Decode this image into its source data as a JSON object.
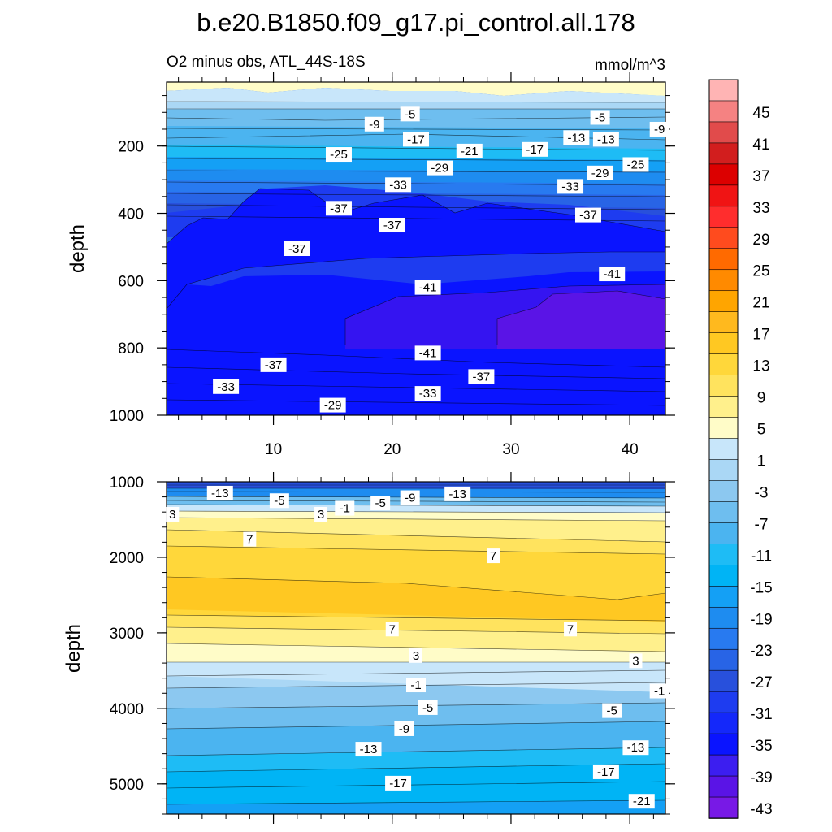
{
  "chart_data": [
    {
      "type": "contour",
      "title": "b.e20.B1850.f09_g17.pi_control.all.178",
      "left_label": "O2 minus obs, ATL_44S-18S",
      "units": "mmol/m^3",
      "xlabel": "",
      "ylabel": "depth",
      "xlim": [
        1,
        43
      ],
      "ylim": [
        1000,
        10
      ],
      "x_ticks": [
        10,
        20,
        30,
        40
      ],
      "y_ticks": [
        200,
        400,
        600,
        800,
        1000
      ],
      "contour_labels": [
        {
          "x": 21.5,
          "y": 105,
          "value": "-5"
        },
        {
          "x": 18.5,
          "y": 135,
          "value": "-9"
        },
        {
          "x": 37.5,
          "y": 115,
          "value": "-5"
        },
        {
          "x": 42.5,
          "y": 150,
          "value": "-9"
        },
        {
          "x": 22.0,
          "y": 180,
          "value": "-17"
        },
        {
          "x": 35.5,
          "y": 175,
          "value": "-13"
        },
        {
          "x": 38.0,
          "y": 180,
          "value": "-13"
        },
        {
          "x": 15.5,
          "y": 225,
          "value": "-25"
        },
        {
          "x": 26.5,
          "y": 215,
          "value": "-21"
        },
        {
          "x": 32.0,
          "y": 210,
          "value": "-17"
        },
        {
          "x": 24.0,
          "y": 265,
          "value": "-29"
        },
        {
          "x": 40.5,
          "y": 255,
          "value": "-25"
        },
        {
          "x": 20.5,
          "y": 315,
          "value": "-33"
        },
        {
          "x": 37.5,
          "y": 280,
          "value": "-29"
        },
        {
          "x": 35.0,
          "y": 320,
          "value": "-33"
        },
        {
          "x": 15.5,
          "y": 385,
          "value": "-37"
        },
        {
          "x": 20.0,
          "y": 435,
          "value": "-37"
        },
        {
          "x": 36.5,
          "y": 405,
          "value": "-37"
        },
        {
          "x": 12.0,
          "y": 505,
          "value": "-37"
        },
        {
          "x": 38.5,
          "y": 580,
          "value": "-41"
        },
        {
          "x": 23.0,
          "y": 620,
          "value": "-41"
        },
        {
          "x": 23.0,
          "y": 815,
          "value": "-41"
        },
        {
          "x": 10.0,
          "y": 850,
          "value": "-37"
        },
        {
          "x": 27.5,
          "y": 885,
          "value": "-37"
        },
        {
          "x": 6.0,
          "y": 915,
          "value": "-33"
        },
        {
          "x": 23.0,
          "y": 935,
          "value": "-33"
        },
        {
          "x": 15.0,
          "y": 970,
          "value": "-29"
        }
      ]
    },
    {
      "type": "contour",
      "xlabel": "",
      "ylabel": "depth",
      "xlim": [
        1,
        43
      ],
      "ylim": [
        5400,
        1000
      ],
      "x_ticks": [
        10,
        20,
        30,
        40
      ],
      "y_ticks": [
        1000,
        2000,
        3000,
        4000,
        5000
      ],
      "contour_labels": [
        {
          "x": 5.5,
          "y": 1150,
          "value": "-13"
        },
        {
          "x": 10.5,
          "y": 1250,
          "value": "-5"
        },
        {
          "x": 1.5,
          "y": 1430,
          "value": "3"
        },
        {
          "x": 14.0,
          "y": 1430,
          "value": "3"
        },
        {
          "x": 16.0,
          "y": 1350,
          "value": "-1"
        },
        {
          "x": 19.0,
          "y": 1280,
          "value": "-5"
        },
        {
          "x": 21.5,
          "y": 1210,
          "value": "-9"
        },
        {
          "x": 25.5,
          "y": 1160,
          "value": "-13"
        },
        {
          "x": 8.0,
          "y": 1760,
          "value": "7"
        },
        {
          "x": 28.5,
          "y": 1980,
          "value": "7"
        },
        {
          "x": 20.0,
          "y": 2950,
          "value": "7"
        },
        {
          "x": 35.0,
          "y": 2950,
          "value": "7"
        },
        {
          "x": 22.0,
          "y": 3300,
          "value": "3"
        },
        {
          "x": 40.5,
          "y": 3370,
          "value": "3"
        },
        {
          "x": 22.0,
          "y": 3690,
          "value": "-1"
        },
        {
          "x": 42.5,
          "y": 3770,
          "value": "-1"
        },
        {
          "x": 23.0,
          "y": 3990,
          "value": "-5"
        },
        {
          "x": 38.5,
          "y": 4030,
          "value": "-5"
        },
        {
          "x": 21.0,
          "y": 4270,
          "value": "-9"
        },
        {
          "x": 18.0,
          "y": 4540,
          "value": "-13"
        },
        {
          "x": 40.5,
          "y": 4520,
          "value": "-13"
        },
        {
          "x": 20.5,
          "y": 4990,
          "value": "-17"
        },
        {
          "x": 38.0,
          "y": 4840,
          "value": "-17"
        },
        {
          "x": 41.0,
          "y": 5230,
          "value": "-21"
        }
      ]
    }
  ],
  "colorbar": {
    "labels": [
      "45",
      "41",
      "37",
      "33",
      "29",
      "25",
      "21",
      "17",
      "13",
      "9",
      "5",
      "1",
      "-3",
      "-7",
      "-11",
      "-15",
      "-19",
      "-23",
      "-27",
      "-31",
      "-35",
      "-39",
      "-43"
    ],
    "colors": [
      "#ffb4b4",
      "#f58282",
      "#e14b4b",
      "#d21e1e",
      "#dc0000",
      "#f01414",
      "#ff2d2d",
      "#ff4b1e",
      "#ff6a00",
      "#ff8a00",
      "#ffa500",
      "#ffb91e",
      "#ffc822",
      "#ffd73a",
      "#ffe35e",
      "#fff08c",
      "#fffcc8",
      "#c8e6fa",
      "#aad7f5",
      "#8cc8f0",
      "#6ebeef",
      "#4bb4f0",
      "#1ebcf5",
      "#00b4f5",
      "#14a0f5",
      "#1e8cf0",
      "#287af0",
      "#2864e6",
      "#2850dc",
      "#1e3cf0",
      "#1428fa",
      "#0a14ff",
      "#3c1ef0",
      "#5a14e6",
      "#7819e6"
    ]
  }
}
